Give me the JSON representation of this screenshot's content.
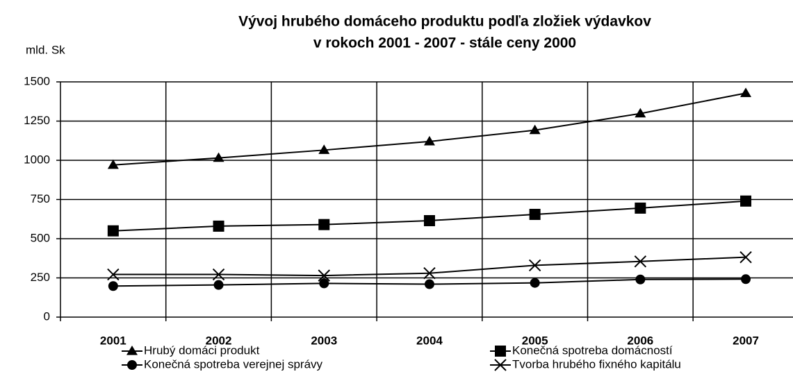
{
  "chart_data": {
    "type": "line",
    "title": [
      "Vývoj hrubého domáceho produktu podľa zložiek výdavkov",
      "v rokoch 2001 - 2007 - stále ceny 2000"
    ],
    "y_label": "mld. Sk",
    "categories": [
      "2001",
      "2002",
      "2003",
      "2004",
      "2005",
      "2006",
      "2007"
    ],
    "series": [
      {
        "name": "Hrubý domáci produkt",
        "color": "#000000",
        "marker": "triangle",
        "values": [
          970,
          1015,
          1065,
          1120,
          1192,
          1298,
          1428
        ]
      },
      {
        "name": "Konečná spotreba domácností",
        "color": "#000000",
        "marker": "square",
        "values": [
          550,
          580,
          590,
          615,
          655,
          695,
          740
        ]
      },
      {
        "name": "Konečná spotreba verejnej správy",
        "color": "#000000",
        "marker": "circle",
        "values": [
          198,
          205,
          215,
          210,
          218,
          240,
          242
        ]
      },
      {
        "name": "Tvorba hrubého fixného kapitálu",
        "color": "#000000",
        "marker": "x",
        "values": [
          272,
          272,
          265,
          280,
          330,
          355,
          382
        ]
      }
    ],
    "ylim": [
      0,
      1500
    ],
    "yticks": [
      0,
      250,
      500,
      750,
      1000,
      1250,
      1500
    ],
    "grid": true
  }
}
